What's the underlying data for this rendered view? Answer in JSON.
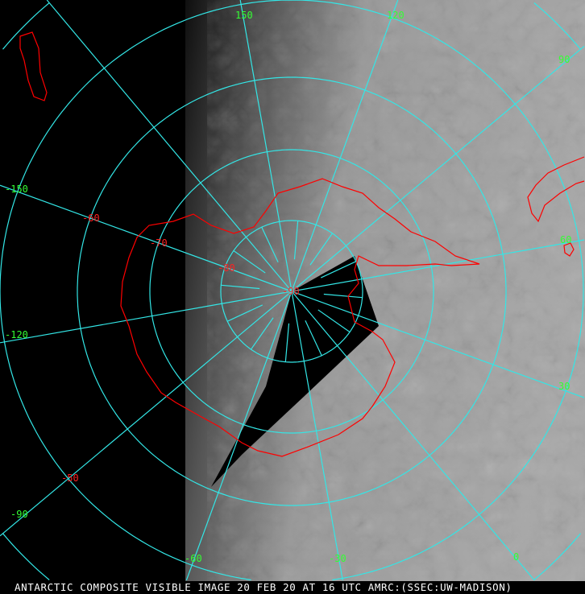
{
  "caption": "ANTARCTIC COMPOSITE VISIBLE IMAGE 20 FEB 20 AT 16 UTC AMRC:(SSEC:UW-MADISON)",
  "projection": "polar stereographic, south pole centered",
  "colors": {
    "graticule": "#33e6e6",
    "coastline": "#ff0000",
    "longitude_labels": "#33ff33",
    "latitude_labels": "#ff2020"
  },
  "latitude_labels": [
    "-90",
    "-80",
    "-70",
    "-60",
    "-50"
  ],
  "longitude_labels": {
    "lon150": "150",
    "lon120": "120",
    "lon90": "90",
    "lon60": "60",
    "lon30": "30",
    "lon0": "0",
    "lonm30": "-30",
    "lonm60": "-60",
    "lonm90": "-90",
    "lonm120": "-120",
    "lonm150": "-150"
  }
}
